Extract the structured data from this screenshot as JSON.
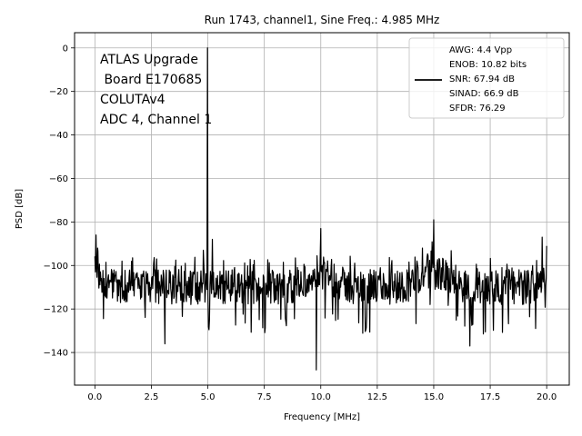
{
  "chart_data": {
    "type": "line",
    "title": "Run 1743, channel1, Sine Freq.: 4.985 MHz",
    "xlabel": "Frequency [MHz]",
    "ylabel": "PSD [dB]",
    "xlim": [
      -0.9,
      21.0
    ],
    "ylim": [
      -155,
      7
    ],
    "x_ticks": [
      0.0,
      2.5,
      5.0,
      7.5,
      10.0,
      12.5,
      15.0,
      17.5,
      20.0
    ],
    "x_tick_labels": [
      "0.0",
      "2.5",
      "5.0",
      "7.5",
      "10.0",
      "12.5",
      "15.0",
      "17.5",
      "20.0"
    ],
    "y_ticks": [
      0,
      -20,
      -40,
      -60,
      -80,
      -100,
      -120,
      -140
    ],
    "y_tick_labels": [
      "0",
      "−20",
      "−40",
      "−60",
      "−80",
      "−100",
      "−120",
      "−140"
    ],
    "grid": true,
    "annotation_lines": [
      "ATLAS Upgrade",
      " Board E170685",
      "COLUTAv4",
      "ADC 4, Channel 1"
    ],
    "legend": {
      "placement": "upper right",
      "lines": [
        "AWG: 4.4 Vpp",
        "ENOB: 10.82 bits",
        "SNR: 67.94 dB",
        "SINAD: 66.9 dB",
        "SFDR: 76.29"
      ]
    },
    "series": [
      {
        "name": "PSD",
        "color": "#000000",
        "noise_floor_db": -110,
        "noise_spread_db": 8,
        "x_start": 0.0,
        "x_end": 20.0,
        "num_points": 900,
        "features": [
          {
            "x": 0.05,
            "y": -86
          },
          {
            "x": 0.12,
            "y": -92
          },
          {
            "x": 1.2,
            "y": -98
          },
          {
            "x": 2.6,
            "y": -99
          },
          {
            "x": 3.1,
            "y": -136
          },
          {
            "x": 4.0,
            "y": -99
          },
          {
            "x": 4.8,
            "y": -93
          },
          {
            "x": 4.985,
            "y": 0
          },
          {
            "x": 5.2,
            "y": -88
          },
          {
            "x": 9.8,
            "y": -148
          },
          {
            "x": 10.0,
            "y": -83
          },
          {
            "x": 14.5,
            "y": -92
          },
          {
            "x": 15.0,
            "y": -79
          },
          {
            "x": 16.6,
            "y": -137
          },
          {
            "x": 19.8,
            "y": -87
          },
          {
            "x": 20.0,
            "y": -91
          }
        ],
        "bumps": [
          {
            "center": 10.0,
            "width": 0.8,
            "height_db": 6
          },
          {
            "center": 15.0,
            "width": 0.9,
            "height_db": 7
          },
          {
            "center": 0.1,
            "width": 0.4,
            "height_db": 6
          },
          {
            "center": 19.9,
            "width": 0.4,
            "height_db": 5
          }
        ]
      }
    ]
  },
  "colors": {
    "line": "#000000",
    "grid": "#b0b0b0",
    "frame": "#000000",
    "legend_frame": "#cccccc",
    "background": "#ffffff"
  }
}
